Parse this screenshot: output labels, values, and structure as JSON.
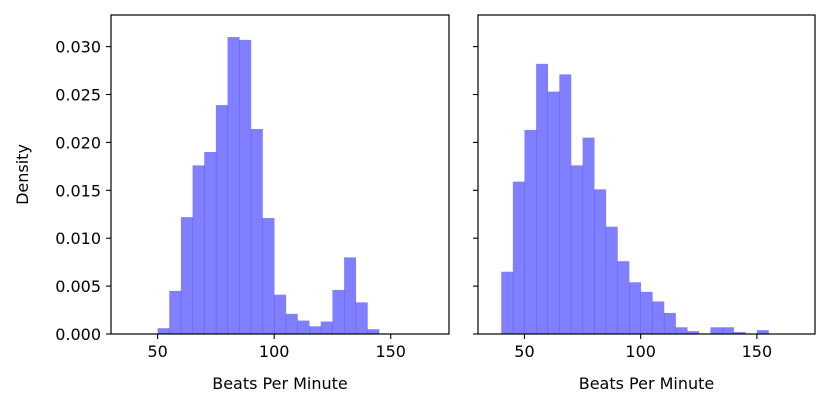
{
  "chart_data": [
    {
      "type": "bar",
      "xlabel": "Beats Per Minute",
      "ylabel": "Density",
      "xlim": [
        30,
        175
      ],
      "ylim": [
        0,
        0.0333
      ],
      "xticks": [
        50,
        100,
        150
      ],
      "yticks": [
        0.0,
        0.005,
        0.01,
        0.015,
        0.02,
        0.025,
        0.03
      ],
      "ytick_labels": [
        "0.000",
        "0.005",
        "0.010",
        "0.015",
        "0.020",
        "0.025",
        "0.030"
      ],
      "bar_color": "#0000ff",
      "bar_opacity": 0.5,
      "bin_width": 5,
      "bin_edges_start": 50,
      "values": [
        0.0006,
        0.0045,
        0.0122,
        0.0176,
        0.019,
        0.0239,
        0.031,
        0.0307,
        0.0214,
        0.0121,
        0.0041,
        0.0021,
        0.0014,
        0.0008,
        0.0013,
        0.0046,
        0.008,
        0.0033,
        0.0005
      ]
    },
    {
      "type": "bar",
      "xlabel": "Beats Per Minute",
      "ylabel": "",
      "xlim": [
        30,
        175
      ],
      "ylim": [
        0,
        0.0333
      ],
      "xticks": [
        50,
        100,
        150
      ],
      "shared_y": true,
      "bar_color": "#0000ff",
      "bar_opacity": 0.5,
      "bin_width": 5,
      "bin_edges_start": 40,
      "values": [
        0.0065,
        0.0159,
        0.0213,
        0.0282,
        0.0253,
        0.0271,
        0.0176,
        0.0205,
        0.0151,
        0.0112,
        0.0076,
        0.0054,
        0.0044,
        0.0034,
        0.0022,
        0.0007,
        0.0003,
        0.0,
        0.0007,
        0.0007,
        0.0002,
        0.0,
        0.0004,
        0.0
      ]
    }
  ]
}
